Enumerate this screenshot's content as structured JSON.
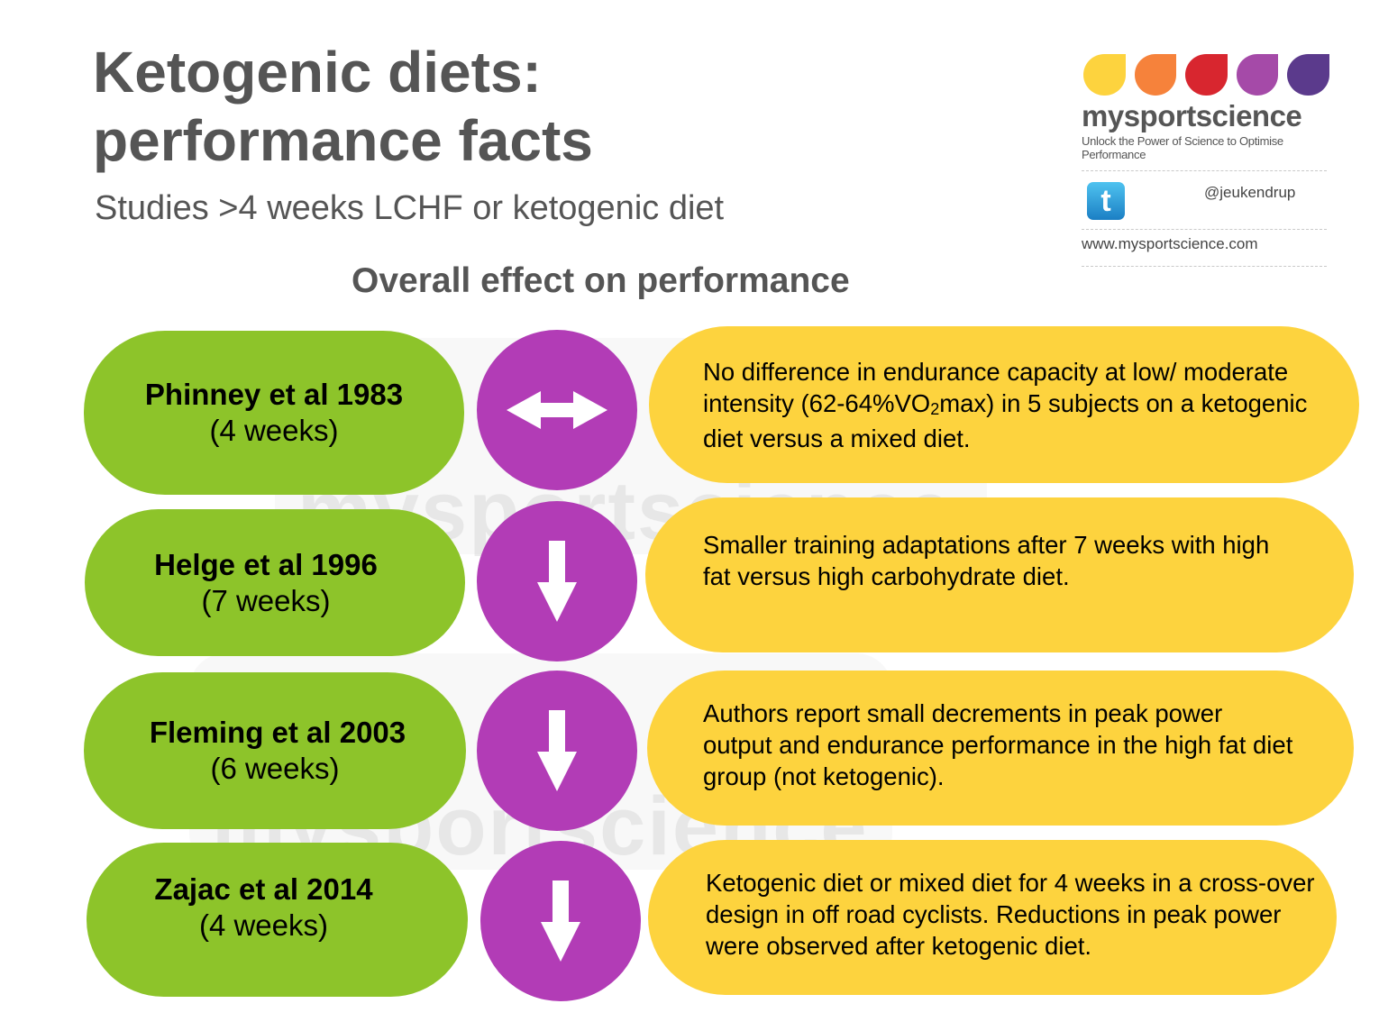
{
  "header": {
    "title_line1": "Ketogenic diets:",
    "title_line2": "performance facts",
    "subtitle": "Studies >4 weeks LCHF or ketogenic diet",
    "section_heading": "Overall effect on performance"
  },
  "logo": {
    "brand": "mysportscience",
    "tagline": "Unlock the Power of Science to Optimise Performance",
    "twitter_glyph": "t",
    "twitter_handle": "@jeukendrup",
    "website": "www.mysportscience.com",
    "drop_colors": [
      "#fdd33e",
      "#f6823b",
      "#d8262f",
      "#a54aa8",
      "#5b3a8c"
    ]
  },
  "watermark": "mysportscience",
  "studies": [
    {
      "name": "Phinney et al 1983",
      "duration": "(4 weeks)",
      "effect_icon": "left-right-arrow-icon",
      "description_parts": [
        "No difference in endurance capacity at low/ moderate intensity (62-64%VO",
        "2",
        "max) in 5 subjects on a ketogenic diet versus a mixed diet."
      ]
    },
    {
      "name": "Helge et al 1996",
      "duration": "(7 weeks)",
      "effect_icon": "down-arrow-icon",
      "description": "Smaller training adaptations after 7 weeks with high fat versus high carbohydrate diet."
    },
    {
      "name": "Fleming et al 2003",
      "duration": "(6 weeks)",
      "effect_icon": "down-arrow-icon",
      "description": "Authors report small decrements in peak power output and endurance performance in the high fat diet group (not ketogenic)."
    },
    {
      "name": "Zajac et al 2014",
      "duration": "(4 weeks)",
      "effect_icon": "down-arrow-icon",
      "description": "Ketogenic diet or mixed diet for 4 weeks in a cross-over design in off road cyclists. Reductions in peak power were observed after ketogenic diet."
    }
  ],
  "colors": {
    "green": "#8dc42a",
    "purple": "#b23cb6",
    "yellow": "#fdd33e",
    "heading_gray": "#555555"
  }
}
